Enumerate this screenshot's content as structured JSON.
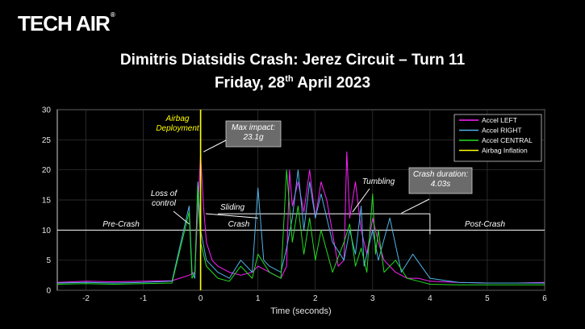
{
  "logo": {
    "text": "TECH AIR",
    "reg": "®"
  },
  "title": {
    "line1": "Dimitris Diatsidis Crash: Jerez Circuit – Turn 11",
    "line2_pre": "Friday, 28",
    "line2_sup": "th",
    "line2_post": " April 2023"
  },
  "chart_data": {
    "type": "line",
    "xlabel": "Time (seconds)",
    "ylabel": "",
    "xlim": [
      -2.5,
      6
    ],
    "ylim": [
      0,
      30
    ],
    "xticks": [
      -2,
      -1,
      0,
      1,
      2,
      3,
      4,
      5,
      6
    ],
    "yticks": [
      0,
      5,
      10,
      15,
      20,
      25,
      30
    ],
    "grid": true,
    "legend_position": "top-right",
    "colors": {
      "Accel LEFT": "#ff1fff",
      "Accel RIGHT": "#4fb3e8",
      "Accel CENTRAL": "#22dd22",
      "Airbag Inflation": "#ffff00"
    },
    "series": [
      {
        "name": "Accel LEFT",
        "x": [
          -2.5,
          -2.0,
          -1.5,
          -1.0,
          -0.5,
          -0.2,
          -0.1,
          0.0,
          0.05,
          0.1,
          0.2,
          0.3,
          0.5,
          0.7,
          0.9,
          1.0,
          1.2,
          1.4,
          1.5,
          1.55,
          1.6,
          1.7,
          1.8,
          1.9,
          2.0,
          2.1,
          2.2,
          2.4,
          2.5,
          2.55,
          2.6,
          2.7,
          2.8,
          2.9,
          3.0,
          3.1,
          3.2,
          3.4,
          3.6,
          3.8,
          4.0,
          4.5,
          5.0,
          5.5,
          6.0
        ],
        "y": [
          1.3,
          1.5,
          1.4,
          1.5,
          1.6,
          2.5,
          3,
          22.7,
          14,
          8,
          5,
          4,
          3,
          2.5,
          3,
          4,
          3,
          2,
          4,
          20,
          14,
          18,
          13,
          20,
          12,
          18,
          15,
          4,
          5,
          23,
          12,
          18,
          10,
          6,
          12,
          8,
          5,
          3,
          2,
          2,
          1.5,
          1.3,
          1.2,
          1.2,
          1.3
        ]
      },
      {
        "name": "Accel RIGHT",
        "x": [
          -2.5,
          -2.0,
          -1.5,
          -1.0,
          -0.5,
          -0.2,
          -0.15,
          -0.1,
          -0.05,
          0.0,
          0.1,
          0.3,
          0.5,
          0.7,
          0.9,
          1.0,
          1.1,
          1.2,
          1.4,
          1.5,
          1.6,
          1.7,
          1.8,
          1.9,
          2.0,
          2.1,
          2.3,
          2.5,
          2.6,
          2.7,
          2.8,
          2.85,
          3.0,
          3.1,
          3.3,
          3.5,
          3.7,
          4.0,
          4.5,
          5.0,
          5.5,
          6.0
        ],
        "y": [
          1.2,
          1.3,
          1.2,
          1.3,
          1.5,
          14,
          3,
          2,
          18,
          10,
          5,
          3,
          2,
          5,
          3,
          17,
          5,
          4,
          3,
          7,
          12,
          20,
          10,
          18,
          12,
          16,
          8,
          5,
          10,
          6,
          14,
          4,
          10,
          5,
          12,
          3,
          6,
          2,
          1.3,
          1.2,
          1.2,
          1.2
        ]
      },
      {
        "name": "Accel CENTRAL",
        "x": [
          -2.5,
          -2.0,
          -1.5,
          -1.0,
          -0.5,
          -0.2,
          -0.15,
          -0.1,
          -0.05,
          0.0,
          0.1,
          0.3,
          0.5,
          0.7,
          0.9,
          1.0,
          1.2,
          1.4,
          1.5,
          1.6,
          1.7,
          1.8,
          1.9,
          2.0,
          2.1,
          2.3,
          2.5,
          2.6,
          2.7,
          2.8,
          2.9,
          3.0,
          3.05,
          3.1,
          3.2,
          3.4,
          3.6,
          3.8,
          4.0,
          4.5,
          5.0,
          5.5,
          6.0
        ],
        "y": [
          1.0,
          1.1,
          1.0,
          1.1,
          1.2,
          13,
          2,
          3,
          17,
          8,
          4,
          2,
          1.5,
          4,
          2,
          6,
          3,
          2,
          20,
          8,
          14,
          6,
          12,
          5,
          10,
          3,
          8,
          11,
          4,
          7,
          3,
          16,
          6,
          10,
          3,
          5,
          2,
          1.5,
          1,
          0.9,
          0.9,
          0.9,
          0.9
        ]
      },
      {
        "name": "Airbag Inflation",
        "x": [
          0,
          0
        ],
        "y": [
          0,
          30
        ]
      }
    ],
    "annotations": {
      "airbag_deployment": "Airbag\nDeployment",
      "max_impact": "Max impact:\n23.1g",
      "loss_of_control": "Loss of\ncontrol",
      "sliding": "Sliding",
      "tumbling": "Tumbling",
      "crash_duration": "Crash duration:\n4.03s",
      "pre_crash": "Pre-Crash",
      "crash": "Crash",
      "post_crash": "Post-Crash"
    }
  }
}
